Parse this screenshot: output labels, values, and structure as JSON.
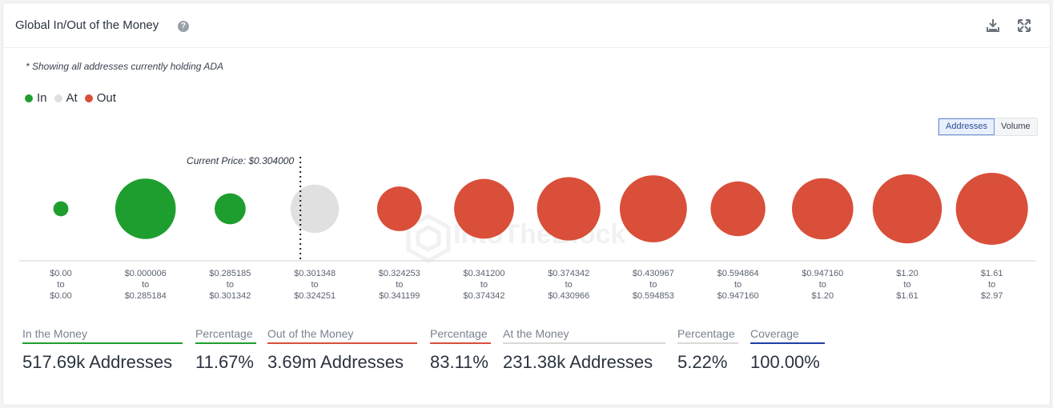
{
  "header": {
    "title": "Global In/Out of the Money",
    "help_icon": "question-circle-icon",
    "download_icon": "download-icon",
    "expand_icon": "expand-icon"
  },
  "note": "* Showing all addresses currently holding ADA",
  "legend": [
    {
      "label": "In",
      "color": "#1e9e2e"
    },
    {
      "label": "At",
      "color": "#e0e0e0"
    },
    {
      "label": "Out",
      "color": "#d94f3a"
    }
  ],
  "toggle": {
    "options": [
      "Addresses",
      "Volume"
    ],
    "selected": "Addresses"
  },
  "chart_data": {
    "type": "bubble",
    "current_price_label": "Current Price: $0.304000",
    "watermark": "IntoTheBlock",
    "buckets": [
      {
        "range": [
          "$0.00",
          "to",
          "$0.00"
        ],
        "status": "in",
        "relative_size": 0.21
      },
      {
        "range": [
          "$0.000006",
          "to",
          "$0.285184"
        ],
        "status": "in",
        "relative_size": 0.84
      },
      {
        "range": [
          "$0.285185",
          "to",
          "$0.301342"
        ],
        "status": "in",
        "relative_size": 0.43
      },
      {
        "range": [
          "$0.301348",
          "to",
          "$0.324251"
        ],
        "status": "at",
        "relative_size": 0.67
      },
      {
        "range": [
          "$0.324253",
          "to",
          "$0.341199"
        ],
        "status": "out",
        "relative_size": 0.62
      },
      {
        "range": [
          "$0.341200",
          "to",
          "$0.374342"
        ],
        "status": "out",
        "relative_size": 0.83
      },
      {
        "range": [
          "$0.374342",
          "to",
          "$0.430966"
        ],
        "status": "out",
        "relative_size": 0.88
      },
      {
        "range": [
          "$0.430967",
          "to",
          "$0.594853"
        ],
        "status": "out",
        "relative_size": 0.93
      },
      {
        "range": [
          "$0.594864",
          "to",
          "$0.947160"
        ],
        "status": "out",
        "relative_size": 0.76
      },
      {
        "range": [
          "$0.947160",
          "to",
          "$1.20"
        ],
        "status": "out",
        "relative_size": 0.85
      },
      {
        "range": [
          "$1.20",
          "to",
          "$1.61"
        ],
        "status": "out",
        "relative_size": 0.96
      },
      {
        "range": [
          "$1.61",
          "to",
          "$2.97"
        ],
        "status": "out",
        "relative_size": 1.0
      }
    ],
    "current_price_after_bucket": 2,
    "colors": {
      "in": "#1e9e2e",
      "at": "#e0e0e0",
      "out": "#d94f3a"
    }
  },
  "stats": [
    {
      "label": "In the Money",
      "value": "517.69k Addresses",
      "color": "#1e9e2e"
    },
    {
      "label": "Percentage",
      "value": "11.67%",
      "color": "#1e9e2e"
    },
    {
      "label": "Out of the Money",
      "value": "3.69m Addresses",
      "color": "#d94f3a"
    },
    {
      "label": "Percentage",
      "value": "83.11%",
      "color": "#d94f3a"
    },
    {
      "label": "At the Money",
      "value": "231.38k Addresses",
      "color": "#d8d8d8"
    },
    {
      "label": "Percentage",
      "value": "5.22%",
      "color": "#d8d8d8"
    },
    {
      "label": "Coverage",
      "value": "100.00%",
      "color": "#1f3fa8"
    }
  ]
}
